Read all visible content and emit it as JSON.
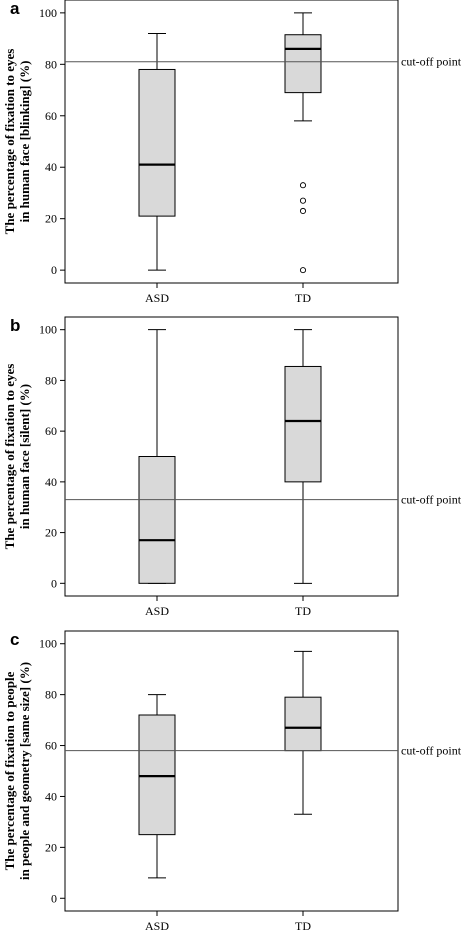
{
  "chart_data": [
    {
      "type": "box",
      "panel_letter": "a",
      "ylabel_line1": "The percentage of fixation to eyes",
      "ylabel_line2": "in human face [blinking] (%)",
      "categories": [
        "ASD",
        "TD"
      ],
      "ylim": [
        -5,
        105
      ],
      "yticks": [
        0,
        20,
        40,
        60,
        80,
        100
      ],
      "cutoff": {
        "value": 81,
        "label": "cut-off point"
      },
      "boxes": [
        {
          "name": "ASD",
          "min": 0,
          "q1": 21,
          "median": 41,
          "q3": 78,
          "max": 92,
          "outliers": []
        },
        {
          "name": "TD",
          "min": 58,
          "q1": 69,
          "median": 86,
          "q3": 91.5,
          "max": 100,
          "outliers": [
            33,
            27,
            23,
            0
          ]
        }
      ]
    },
    {
      "type": "box",
      "panel_letter": "b",
      "ylabel_line1": "The percentage of fixation to eyes",
      "ylabel_line2": "in human face [silent] (%)",
      "categories": [
        "ASD",
        "TD"
      ],
      "ylim": [
        -5,
        105
      ],
      "yticks": [
        0,
        20,
        40,
        60,
        80,
        100
      ],
      "cutoff": {
        "value": 33,
        "label": "cut-off point"
      },
      "boxes": [
        {
          "name": "ASD",
          "min": 0,
          "q1": 0,
          "median": 17,
          "q3": 50,
          "max": 100,
          "outliers": []
        },
        {
          "name": "TD",
          "min": 0,
          "q1": 40,
          "median": 64,
          "q3": 85.5,
          "max": 100,
          "outliers": []
        }
      ]
    },
    {
      "type": "box",
      "panel_letter": "c",
      "ylabel_line1": "The percentage of fixation to people",
      "ylabel_line2": "in people and geometry [same size] (%)",
      "categories": [
        "ASD",
        "TD"
      ],
      "ylim": [
        -5,
        105
      ],
      "yticks": [
        0,
        20,
        40,
        60,
        80,
        100
      ],
      "cutoff": {
        "value": 58,
        "label": "cut-off point"
      },
      "boxes": [
        {
          "name": "ASD",
          "min": 8,
          "q1": 25,
          "median": 48,
          "q3": 72,
          "max": 80,
          "outliers": []
        },
        {
          "name": "TD",
          "min": 33,
          "q1": 58,
          "median": 67,
          "q3": 79,
          "max": 97,
          "outliers": []
        }
      ]
    }
  ],
  "colors": {
    "box_fill": "#d9d9d9",
    "stroke": "#000000",
    "cutoff_line": "#555555"
  }
}
